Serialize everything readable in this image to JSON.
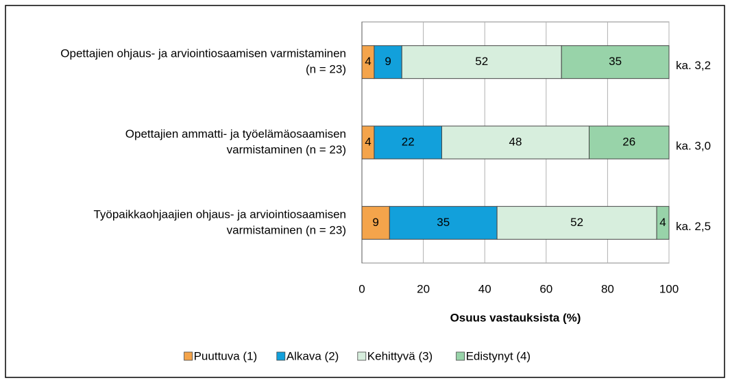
{
  "chart_data": {
    "type": "stacked_barh",
    "categories": [
      [
        "Opettajien ohjaus- ja arviointiosaamisen varmistaminen",
        "(n = 23)"
      ],
      [
        "Opettajien ammatti- ja työelämäosaamisen",
        "varmistaminen (n = 23)"
      ],
      [
        "Työpaikkaohjaajien ohjaus- ja arviointiosaamisen",
        "varmistaminen (n = 23)"
      ]
    ],
    "series": [
      {
        "name": "Puuttuva (1)",
        "color": "#f4a44b",
        "values": [
          4,
          4,
          9
        ]
      },
      {
        "name": "Alkava (2)",
        "color": "#12a0db",
        "values": [
          9,
          22,
          35
        ]
      },
      {
        "name": "Kehittyvä (3)",
        "color": "#d7eedd",
        "values": [
          52,
          48,
          52
        ]
      },
      {
        "name": "Edistynyt (4)",
        "color": "#98d3a9",
        "values": [
          35,
          26,
          4
        ]
      }
    ],
    "annotations": [
      "ka. 3,2",
      "ka. 3,0",
      "ka. 2,5"
    ],
    "xlabel": "Osuus vastauksista (%)",
    "xlim": [
      0,
      100
    ],
    "xticks": [
      0,
      20,
      40,
      60,
      80,
      100
    ],
    "grid": true,
    "legend": "bottom"
  }
}
